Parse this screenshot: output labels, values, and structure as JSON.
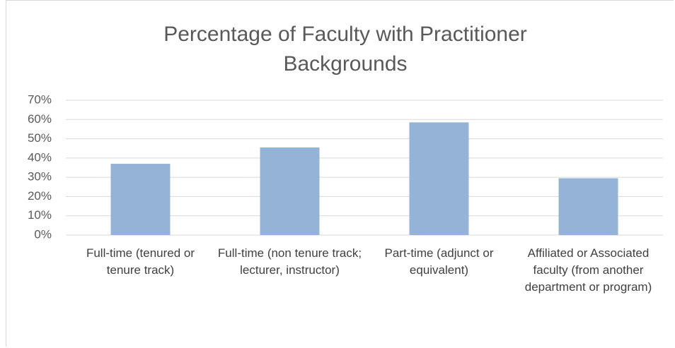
{
  "chart_data": {
    "type": "bar",
    "title": "Percentage of Faculty with Practitioner Backgrounds",
    "categories": [
      "Full-time (tenured or tenure track)",
      "Full-time (non tenure track; lecturer, instructor)",
      "Part-time (adjunct or equivalent)",
      "Affiliated or Associated faculty (from another department or program)"
    ],
    "values": [
      37,
      45.5,
      58.5,
      29.5
    ],
    "color": "#95b3d7",
    "ylim": [
      0,
      70
    ],
    "yticks": [
      {
        "value": 0,
        "label": "0%"
      },
      {
        "value": 10,
        "label": "10%"
      },
      {
        "value": 20,
        "label": "20%"
      },
      {
        "value": 30,
        "label": "30%"
      },
      {
        "value": 40,
        "label": "40%"
      },
      {
        "value": 50,
        "label": "50%"
      },
      {
        "value": 60,
        "label": "60%"
      },
      {
        "value": 70,
        "label": "70%"
      }
    ],
    "grid": true
  }
}
